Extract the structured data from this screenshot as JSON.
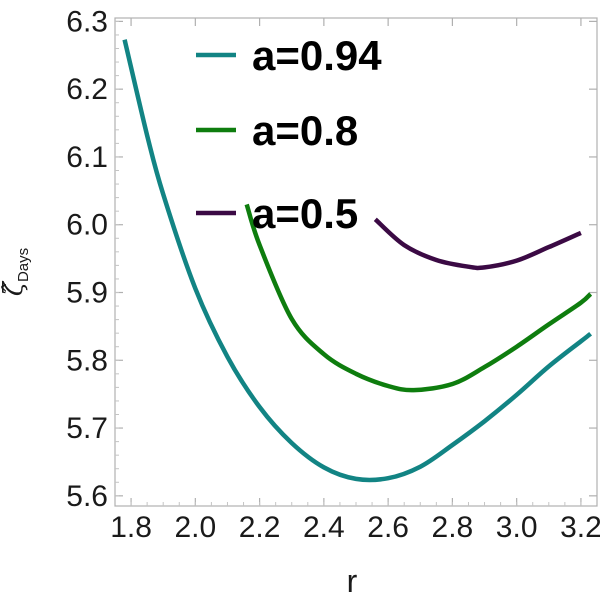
{
  "chart_data": {
    "type": "line",
    "xlabel": "r",
    "ylabel": {
      "symbol": "ζ̂",
      "subscript": "Days"
    },
    "xlim": [
      1.75,
      3.25
    ],
    "ylim": [
      5.585,
      6.305
    ],
    "xticks": [
      "1.8",
      "2.0",
      "2.2",
      "2.4",
      "2.6",
      "2.8",
      "3.0",
      "3.2"
    ],
    "yticks": [
      "5.6",
      "5.7",
      "5.8",
      "5.9",
      "6.0",
      "6.1",
      "6.2",
      "6.3"
    ],
    "grid": false,
    "legend_position": "top-center",
    "series": [
      {
        "name": "a=0.94",
        "color": "#128484",
        "x": [
          1.78,
          1.85,
          1.9,
          2.0,
          2.1,
          2.2,
          2.3,
          2.4,
          2.5,
          2.6,
          2.7,
          2.8,
          2.9,
          3.0,
          3.1,
          3.2,
          3.23
        ],
        "y": [
          6.273,
          6.132,
          6.045,
          5.906,
          5.805,
          5.731,
          5.678,
          5.642,
          5.625,
          5.626,
          5.643,
          5.675,
          5.71,
          5.749,
          5.791,
          5.828,
          5.839
        ]
      },
      {
        "name": "a=0.8",
        "color": "#0e7d0e",
        "x": [
          2.16,
          2.2,
          2.3,
          2.4,
          2.5,
          2.6,
          2.68,
          2.8,
          2.9,
          3.0,
          3.1,
          3.2,
          3.23
        ],
        "y": [
          6.03,
          5.97,
          5.861,
          5.809,
          5.78,
          5.762,
          5.756,
          5.765,
          5.79,
          5.82,
          5.853,
          5.885,
          5.898
        ]
      },
      {
        "name": "a=0.5",
        "color": "#3b0a44",
        "x": [
          2.56,
          2.65,
          2.75,
          2.85,
          2.9,
          3.0,
          3.1,
          3.2
        ],
        "y": [
          6.008,
          5.97,
          5.948,
          5.938,
          5.937,
          5.947,
          5.967,
          5.988
        ]
      }
    ]
  }
}
